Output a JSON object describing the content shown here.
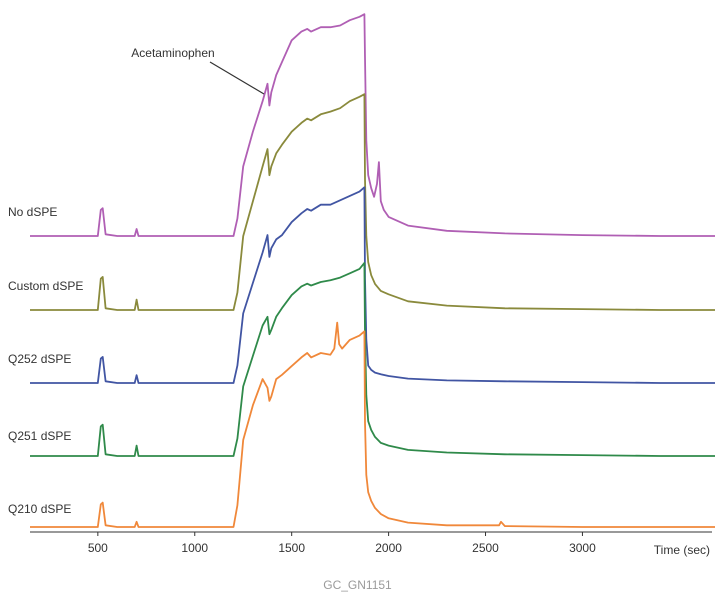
{
  "chart_data": {
    "type": "line",
    "title": "",
    "xlabel": "Time (sec)",
    "ylabel": "",
    "xlim": [
      150,
      3720
    ],
    "xticks": [
      500,
      1000,
      1500,
      2000,
      2500,
      3000
    ],
    "grid": false,
    "legend": "none",
    "annotation": {
      "text": "Acetaminophen",
      "x": 1380
    },
    "series": [
      {
        "name": "No dSPE",
        "color": "#b05fb4",
        "x": [
          150,
          500,
          515,
          525,
          540,
          600,
          690,
          700,
          710,
          1200,
          1220,
          1250,
          1300,
          1350,
          1375,
          1385,
          1395,
          1420,
          1450,
          1500,
          1550,
          1580,
          1600,
          1650,
          1700,
          1750,
          1800,
          1850,
          1875,
          1878,
          1885,
          1895,
          1910,
          1925,
          1940,
          1950,
          1960,
          1975,
          2000,
          2100,
          2300,
          2600,
          3000,
          3400,
          3720
        ],
        "y": [
          0,
          0,
          30,
          32,
          2,
          0,
          0,
          8,
          0,
          0,
          20,
          80,
          120,
          155,
          175,
          150,
          165,
          185,
          200,
          225,
          235,
          238,
          235,
          240,
          240,
          242,
          248,
          252,
          255,
          205,
          110,
          70,
          55,
          45,
          60,
          85,
          40,
          30,
          22,
          12,
          6,
          3,
          1,
          0,
          0
        ]
      },
      {
        "name": "Custom dSPE",
        "color": "#8a8a3c",
        "x": [
          150,
          500,
          515,
          525,
          540,
          600,
          690,
          700,
          710,
          1200,
          1220,
          1250,
          1300,
          1350,
          1375,
          1385,
          1395,
          1420,
          1450,
          1500,
          1550,
          1580,
          1600,
          1650,
          1700,
          1750,
          1800,
          1850,
          1875,
          1878,
          1885,
          1895,
          1910,
          1930,
          1960,
          2000,
          2100,
          2300,
          2600,
          3000,
          3400,
          3720
        ],
        "y": [
          0,
          0,
          36,
          38,
          2,
          0,
          0,
          12,
          0,
          0,
          20,
          85,
          125,
          165,
          185,
          155,
          165,
          180,
          190,
          205,
          215,
          220,
          218,
          225,
          228,
          232,
          240,
          245,
          248,
          150,
          85,
          55,
          40,
          30,
          22,
          18,
          10,
          5,
          2,
          1,
          0,
          0
        ]
      },
      {
        "name": "Q252 dSPE",
        "color": "#4155a3",
        "x": [
          150,
          500,
          515,
          525,
          540,
          600,
          690,
          700,
          710,
          1200,
          1220,
          1250,
          1300,
          1350,
          1375,
          1385,
          1395,
          1420,
          1450,
          1500,
          1550,
          1580,
          1600,
          1650,
          1700,
          1750,
          1800,
          1850,
          1875,
          1878,
          1885,
          1895,
          1910,
          1930,
          1960,
          2000,
          2100,
          2300,
          2600,
          3000,
          3400,
          3720
        ],
        "y": [
          0,
          0,
          28,
          30,
          2,
          0,
          0,
          9,
          0,
          0,
          20,
          80,
          115,
          150,
          170,
          145,
          155,
          165,
          170,
          185,
          195,
          200,
          198,
          205,
          205,
          210,
          215,
          220,
          225,
          120,
          50,
          20,
          15,
          12,
          10,
          8,
          5,
          3,
          2,
          1,
          0,
          0
        ]
      },
      {
        "name": "Q251 dSPE",
        "color": "#2f8a4a",
        "x": [
          150,
          500,
          515,
          525,
          540,
          600,
          690,
          700,
          710,
          1200,
          1220,
          1250,
          1300,
          1350,
          1375,
          1385,
          1395,
          1420,
          1450,
          1500,
          1550,
          1580,
          1600,
          1650,
          1700,
          1750,
          1800,
          1850,
          1875,
          1878,
          1885,
          1895,
          1910,
          1930,
          1960,
          2000,
          2100,
          2300,
          2600,
          3000,
          3400,
          3720
        ],
        "y": [
          0,
          0,
          34,
          36,
          2,
          0,
          0,
          12,
          0,
          0,
          20,
          80,
          115,
          150,
          160,
          140,
          145,
          160,
          170,
          185,
          195,
          198,
          196,
          200,
          202,
          205,
          210,
          215,
          222,
          140,
          70,
          40,
          30,
          22,
          15,
          12,
          7,
          4,
          2,
          1,
          0,
          0
        ]
      },
      {
        "name": "Q210 dSPE",
        "color": "#f0883a",
        "x": [
          150,
          500,
          515,
          525,
          540,
          600,
          690,
          700,
          710,
          1200,
          1220,
          1250,
          1300,
          1350,
          1375,
          1385,
          1395,
          1420,
          1450,
          1500,
          1550,
          1580,
          1600,
          1650,
          1700,
          1720,
          1735,
          1745,
          1760,
          1800,
          1850,
          1875,
          1878,
          1885,
          1895,
          1910,
          1930,
          1960,
          2000,
          2100,
          2300,
          2570,
          2580,
          2600,
          3000,
          3400,
          3720
        ],
        "y": [
          0,
          0,
          26,
          28,
          2,
          0,
          0,
          6,
          0,
          0,
          25,
          100,
          140,
          170,
          160,
          145,
          150,
          170,
          175,
          185,
          195,
          200,
          195,
          200,
          198,
          205,
          235,
          210,
          205,
          215,
          220,
          225,
          120,
          60,
          40,
          30,
          22,
          15,
          10,
          5,
          2,
          2,
          6,
          1,
          0,
          0,
          0
        ]
      }
    ]
  },
  "caption": "GC_GN1151"
}
